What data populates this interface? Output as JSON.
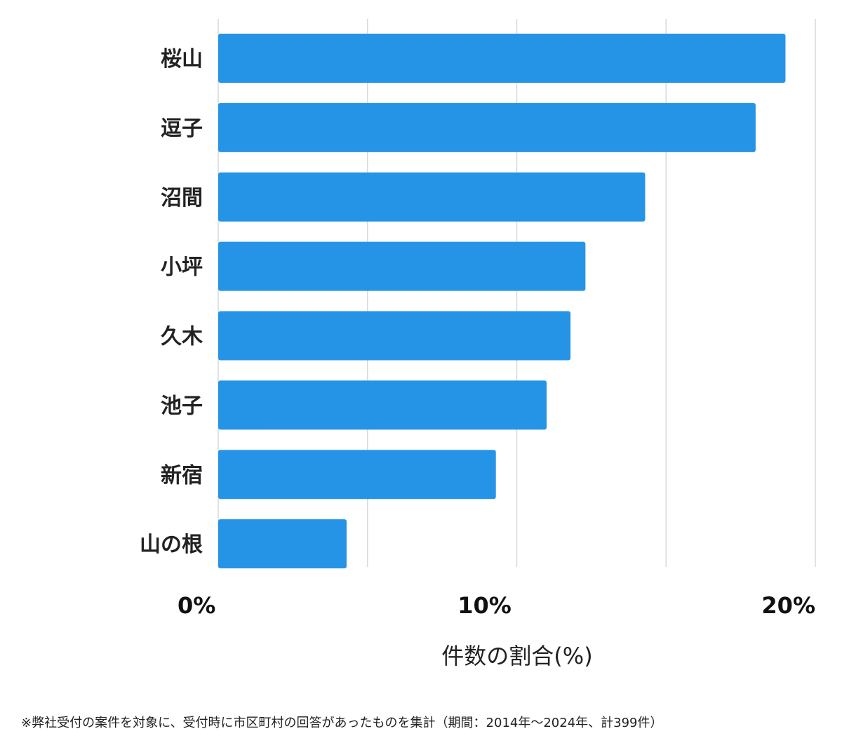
{
  "chart_data": {
    "type": "bar",
    "orientation": "horizontal",
    "categories": [
      "桜山",
      "逗子",
      "沼間",
      "小坪",
      "久木",
      "池子",
      "新宿",
      "山の根"
    ],
    "values": [
      19.0,
      18.0,
      14.3,
      12.3,
      11.8,
      11.0,
      9.3,
      4.3
    ],
    "xlabel": "件数の割合(%)",
    "ylabel": "",
    "xlim": [
      0,
      20
    ],
    "x_ticks": [
      {
        "value": 0,
        "label": "0%"
      },
      {
        "value": 10,
        "label": "10%"
      },
      {
        "value": 20,
        "label": "20%"
      }
    ],
    "grid_values": [
      0,
      5,
      10,
      15,
      20
    ],
    "grid": true,
    "bar_color": "#2694e6",
    "grid_color": "#d9d9d9"
  },
  "footnote": "※弊社受付の案件を対象に、受付時に市区町村の回答があったものを集計（期間：2014年～2024年、計399件）"
}
